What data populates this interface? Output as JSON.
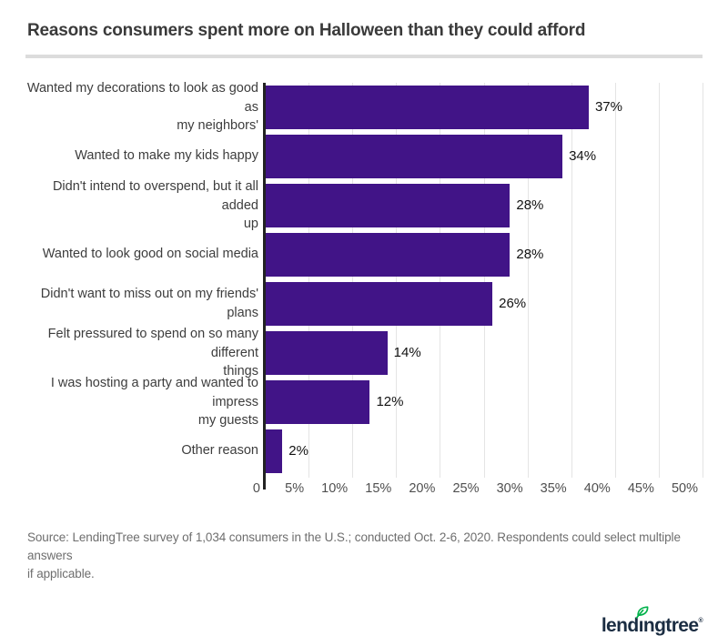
{
  "title": "Reasons consumers spent more on Halloween than they could afford",
  "chart_data": {
    "type": "bar",
    "orientation": "horizontal",
    "title": "Reasons consumers spent more on Halloween than they could afford",
    "categories": [
      "Wanted my decorations to look as good as\nmy neighbors'",
      "Wanted to make my kids happy",
      "Didn't intend to overspend, but it all added\nup",
      "Wanted to look good on social media",
      "Didn't want to miss out on my friends' plans",
      "Felt pressured to spend on so many different\nthings",
      "I was hosting a party and wanted to impress\nmy guests",
      "Other reason"
    ],
    "values": [
      37,
      34,
      28,
      28,
      26,
      14,
      12,
      2
    ],
    "value_labels": [
      "37%",
      "34%",
      "28%",
      "28%",
      "26%",
      "14%",
      "12%",
      "2%"
    ],
    "x_ticks": [
      {
        "value": 0,
        "label": "0"
      },
      {
        "value": 5,
        "label": "5%"
      },
      {
        "value": 10,
        "label": "10%"
      },
      {
        "value": 15,
        "label": "15%"
      },
      {
        "value": 20,
        "label": "20%"
      },
      {
        "value": 25,
        "label": "25%"
      },
      {
        "value": 30,
        "label": "30%"
      },
      {
        "value": 35,
        "label": "35%"
      },
      {
        "value": 40,
        "label": "40%"
      },
      {
        "value": 45,
        "label": "45%"
      },
      {
        "value": 50,
        "label": "50%"
      }
    ],
    "xlim": [
      0,
      50
    ],
    "xlabel": "",
    "ylabel": "",
    "grid": "vertical-lines",
    "legend": "none",
    "bar_color": "#411487"
  },
  "source_note": "Source: LendingTree survey of 1,034 consumers in the U.S.; conducted Oct. 2-6, 2020. Respondents could select multiple answers\nif applicable.",
  "branding": {
    "logo_text": "lendingtree",
    "trademark": "®"
  },
  "colors": {
    "bar": "#411487",
    "axis": "#222222",
    "gridline": "#e4e4e4",
    "title_text": "#3a3a3a",
    "category_text": "#3d3d3d",
    "value_text": "#121212",
    "tick_text": "#4f4f4f",
    "source_text": "#6e6e6e",
    "divider": "#dcdcdc",
    "logo_navy": "#1b2d42",
    "leaf_green": "#00b24b"
  }
}
